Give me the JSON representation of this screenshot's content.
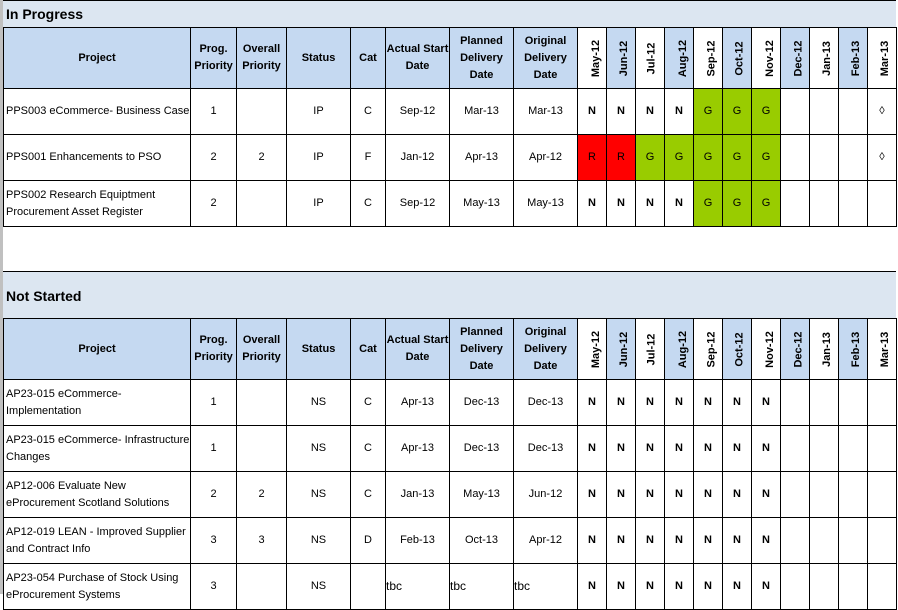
{
  "headers": {
    "project": "Project",
    "prog_priority": "Prog. Priority",
    "overall_priority": "Overall Priority",
    "status": "Status",
    "cat": "Cat",
    "actual_start": "Actual Start Date",
    "planned_delivery": "Planned Delivery Date",
    "original_delivery": "Original Delivery Date",
    "months": [
      "May-12",
      "Jun-12",
      "Jul-12",
      "Aug-12",
      "Sep-12",
      "Oct-12",
      "Nov-12",
      "Dec-12",
      "Jan-13",
      "Feb-13",
      "Mar-13"
    ]
  },
  "colors": {
    "G": "#99cc00",
    "R": "#ff0000",
    "band": "#dce6f1",
    "header": "#c5d9f1"
  },
  "sections": [
    {
      "title": "In Progress",
      "rows": [
        {
          "project": "PPS003 eCommerce- Business Case",
          "prog_priority": "1",
          "overall_priority": "",
          "status": "IP",
          "cat": "C",
          "actual_start": "Sep-12",
          "planned_delivery": "Mar-13",
          "original_delivery": "Mar-13",
          "months": [
            "N",
            "N",
            "N",
            "N",
            "G",
            "G",
            "G",
            "",
            "",
            "",
            "◊"
          ]
        },
        {
          "project": "PPS001 Enhancements to PSO",
          "prog_priority": "2",
          "overall_priority": "2",
          "status": "IP",
          "cat": "F",
          "actual_start": "Jan-12",
          "planned_delivery": "Apr-13",
          "original_delivery": "Apr-12",
          "months": [
            "R",
            "R",
            "G",
            "G",
            "G",
            "G",
            "G",
            "",
            "",
            "",
            "◊"
          ]
        },
        {
          "project": "PPS002 Research Equiptment Procurement Asset Register",
          "prog_priority": "2",
          "overall_priority": "",
          "status": "IP",
          "cat": "C",
          "actual_start": "Sep-12",
          "planned_delivery": "May-13",
          "original_delivery": "May-13",
          "months": [
            "N",
            "N",
            "N",
            "N",
            "G",
            "G",
            "G",
            "",
            "",
            "",
            ""
          ]
        }
      ]
    },
    {
      "title": "Not Started",
      "rows": [
        {
          "project": "AP23-015 eCommerce- Implementation",
          "prog_priority": "1",
          "overall_priority": "",
          "status": "NS",
          "cat": "C",
          "actual_start": "Apr-13",
          "planned_delivery": "Dec-13",
          "original_delivery": "Dec-13",
          "months": [
            "N",
            "N",
            "N",
            "N",
            "N",
            "N",
            "N",
            "",
            "",
            "",
            ""
          ]
        },
        {
          "project": "AP23-015 eCommerce- Infrastructure Changes",
          "prog_priority": "1",
          "overall_priority": "",
          "status": "NS",
          "cat": "C",
          "actual_start": "Apr-13",
          "planned_delivery": "Dec-13",
          "original_delivery": "Dec-13",
          "months": [
            "N",
            "N",
            "N",
            "N",
            "N",
            "N",
            "N",
            "",
            "",
            "",
            ""
          ]
        },
        {
          "project": "AP12-006 Evaluate New eProcurement Scotland Solutions",
          "prog_priority": "2",
          "overall_priority": "2",
          "status": "NS",
          "cat": "C",
          "actual_start": "Jan-13",
          "planned_delivery": "May-13",
          "original_delivery": "Jun-12",
          "months": [
            "N",
            "N",
            "N",
            "N",
            "N",
            "N",
            "N",
            "",
            "",
            "",
            ""
          ]
        },
        {
          "project": "AP12-019 LEAN - Improved Supplier and Contract Info",
          "prog_priority": "3",
          "overall_priority": "3",
          "status": "NS",
          "cat": "D",
          "actual_start": "Feb-13",
          "planned_delivery": "Oct-13",
          "original_delivery": "Apr-12",
          "months": [
            "N",
            "N",
            "N",
            "N",
            "N",
            "N",
            "N",
            "",
            "",
            "",
            ""
          ]
        },
        {
          "project": "AP23-054 Purchase of Stock Using eProcurement Systems",
          "prog_priority": "3",
          "overall_priority": "",
          "status": "NS",
          "cat": "",
          "actual_start": "tbc",
          "planned_delivery": "tbc",
          "original_delivery": "tbc",
          "months": [
            "N",
            "N",
            "N",
            "N",
            "N",
            "N",
            "N",
            "",
            "",
            "",
            ""
          ]
        }
      ]
    }
  ]
}
